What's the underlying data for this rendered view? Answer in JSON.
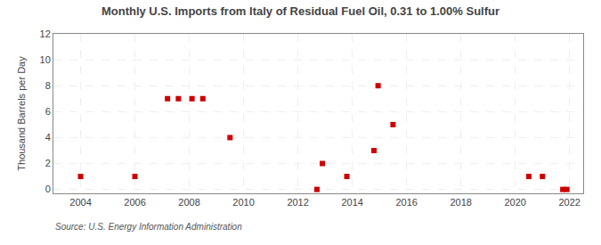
{
  "chart_data": {
    "type": "scatter",
    "title": "Monthly U.S. Imports from Italy of Residual Fuel Oil, 0.31 to 1.00% Sulfur",
    "ylabel": "Thousand Barrels per Day",
    "annotation": "Source: U.S. Energy Information Administration",
    "color": "#cc0000",
    "marker": "square",
    "grid": true,
    "x": [
      2004.0,
      2006.0,
      2007.2,
      2007.6,
      2008.1,
      2008.5,
      2009.5,
      2012.7,
      2012.9,
      2013.8,
      2014.8,
      2014.95,
      2015.5,
      2020.5,
      2021.0,
      2021.75,
      2021.9
    ],
    "values": [
      1,
      1,
      7,
      7,
      7,
      7,
      4,
      0,
      2,
      1,
      3,
      8,
      5,
      1,
      1,
      0,
      0
    ],
    "xlim": [
      2003.0,
      2022.5
    ],
    "ylim": [
      -0.3,
      12
    ],
    "xticks": [
      2004,
      2006,
      2008,
      2010,
      2012,
      2014,
      2016,
      2018,
      2020,
      2022
    ],
    "yticks": [
      0,
      2,
      4,
      6,
      8,
      10,
      12
    ]
  }
}
